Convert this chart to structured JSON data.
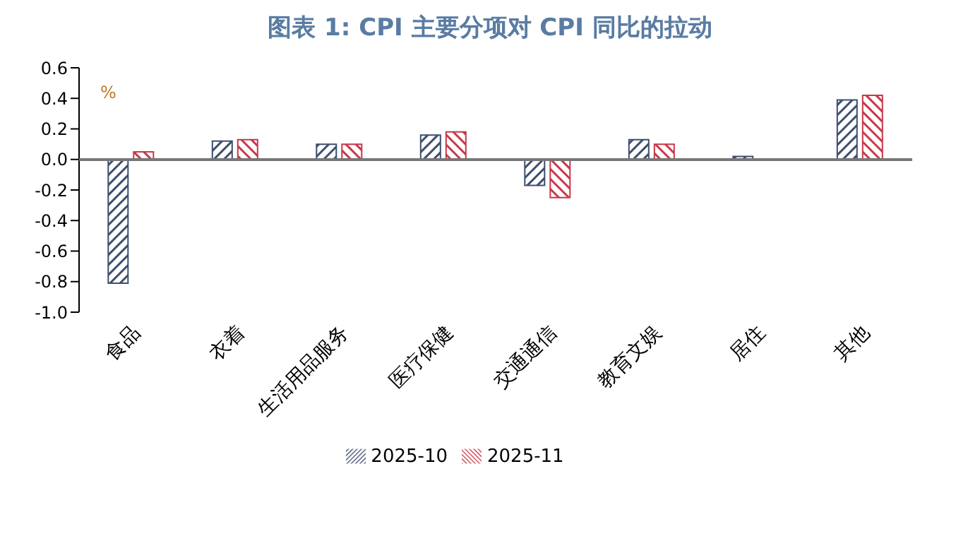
{
  "chart_data": {
    "type": "bar",
    "title": "图表 1:  CPI 主要分项对 CPI 同比的拉动",
    "ylabel": "%",
    "categories": [
      "食品",
      "衣着",
      "生活用品服务",
      "医疗保健",
      "交通通信",
      "教育文娱",
      "居住",
      "其他"
    ],
    "series": [
      {
        "name": "2025-10",
        "color": "#3d4f6e",
        "values": [
          -0.81,
          0.12,
          0.1,
          0.16,
          -0.17,
          0.13,
          0.02,
          0.39
        ]
      },
      {
        "name": "2025-11",
        "color": "#c8384a",
        "values": [
          0.05,
          0.13,
          0.1,
          0.18,
          -0.25,
          0.1,
          0.0,
          0.42
        ]
      }
    ],
    "ylim": [
      -1.0,
      0.6
    ],
    "yticks": [
      {
        "value": -1.0,
        "label": "-1.0"
      },
      {
        "value": -0.8,
        "label": "-0.8"
      },
      {
        "value": -0.6,
        "label": "-0.6"
      },
      {
        "value": -0.4,
        "label": "-0.4"
      },
      {
        "value": -0.2,
        "label": "-0.2"
      },
      {
        "value": 0,
        "label": "0.0"
      },
      {
        "value": 0.2,
        "label": "0.2"
      },
      {
        "value": 0.4,
        "label": "0.4"
      },
      {
        "value": 0.6,
        "label": "0.6"
      }
    ],
    "grid": false,
    "legend": "bottom"
  }
}
